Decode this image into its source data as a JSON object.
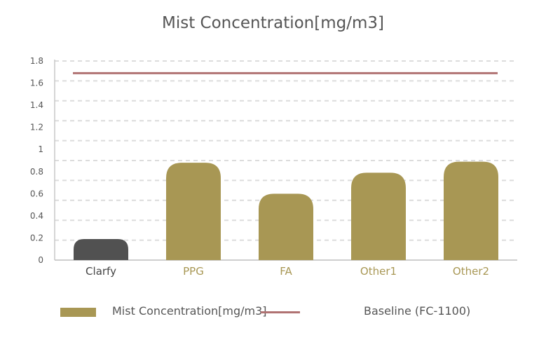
{
  "chart_data": {
    "type": "bar",
    "title": "Mist Concentration[mg/m3]",
    "categories": [
      "Clarfy",
      "PPG",
      "FA",
      "Other1",
      "Other2"
    ],
    "series": [
      {
        "name": "Mist Concentration[mg/m3]",
        "values": [
          0.19,
          0.88,
          0.6,
          0.79,
          0.89
        ],
        "color": "#a89754",
        "highlight_color": "#515151",
        "highlight_category": "Clarfy"
      },
      {
        "name": "Baseline (FC-1100)",
        "type": "line",
        "values": [
          1.69,
          1.69,
          1.69,
          1.69,
          1.69
        ],
        "color": "#b07272"
      }
    ],
    "yticks": [
      "0",
      "0.2",
      "0.4",
      "0.6",
      "0.8",
      "1",
      "1.2",
      "1.4",
      "1.6",
      "1.8"
    ],
    "ylim": [
      0,
      1.8
    ],
    "xlabel": "",
    "ylabel": "",
    "grid": true,
    "legend": "bottom",
    "category_label_colors": [
      "#444444",
      "#a89754",
      "#a89754",
      "#a89754",
      "#a89754"
    ]
  }
}
